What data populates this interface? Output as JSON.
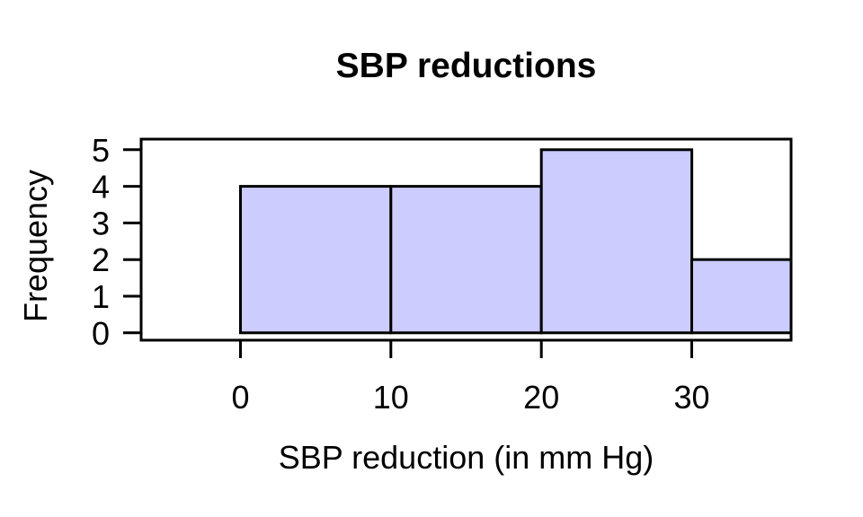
{
  "chart_data": {
    "type": "bar",
    "subtype": "histogram",
    "title": "SBP reductions",
    "xlabel": "SBP reduction (in mm Hg)",
    "ylabel": "Frequency",
    "breaks": [
      0,
      10,
      20,
      30,
      40
    ],
    "counts": [
      4,
      4,
      5,
      2
    ],
    "x_ticks": [
      0,
      10,
      20,
      30
    ],
    "y_ticks": [
      0,
      1,
      2,
      3,
      4,
      5
    ],
    "xlim": [
      -6.6,
      36.6
    ],
    "ylim": [
      -0.2,
      5.29
    ],
    "bar_fill": "#ccccff",
    "bar_stroke": "#000000",
    "axis_color": "#000000",
    "text_color": "#000000",
    "background": "#ffffff",
    "grid": false,
    "legend": false
  }
}
